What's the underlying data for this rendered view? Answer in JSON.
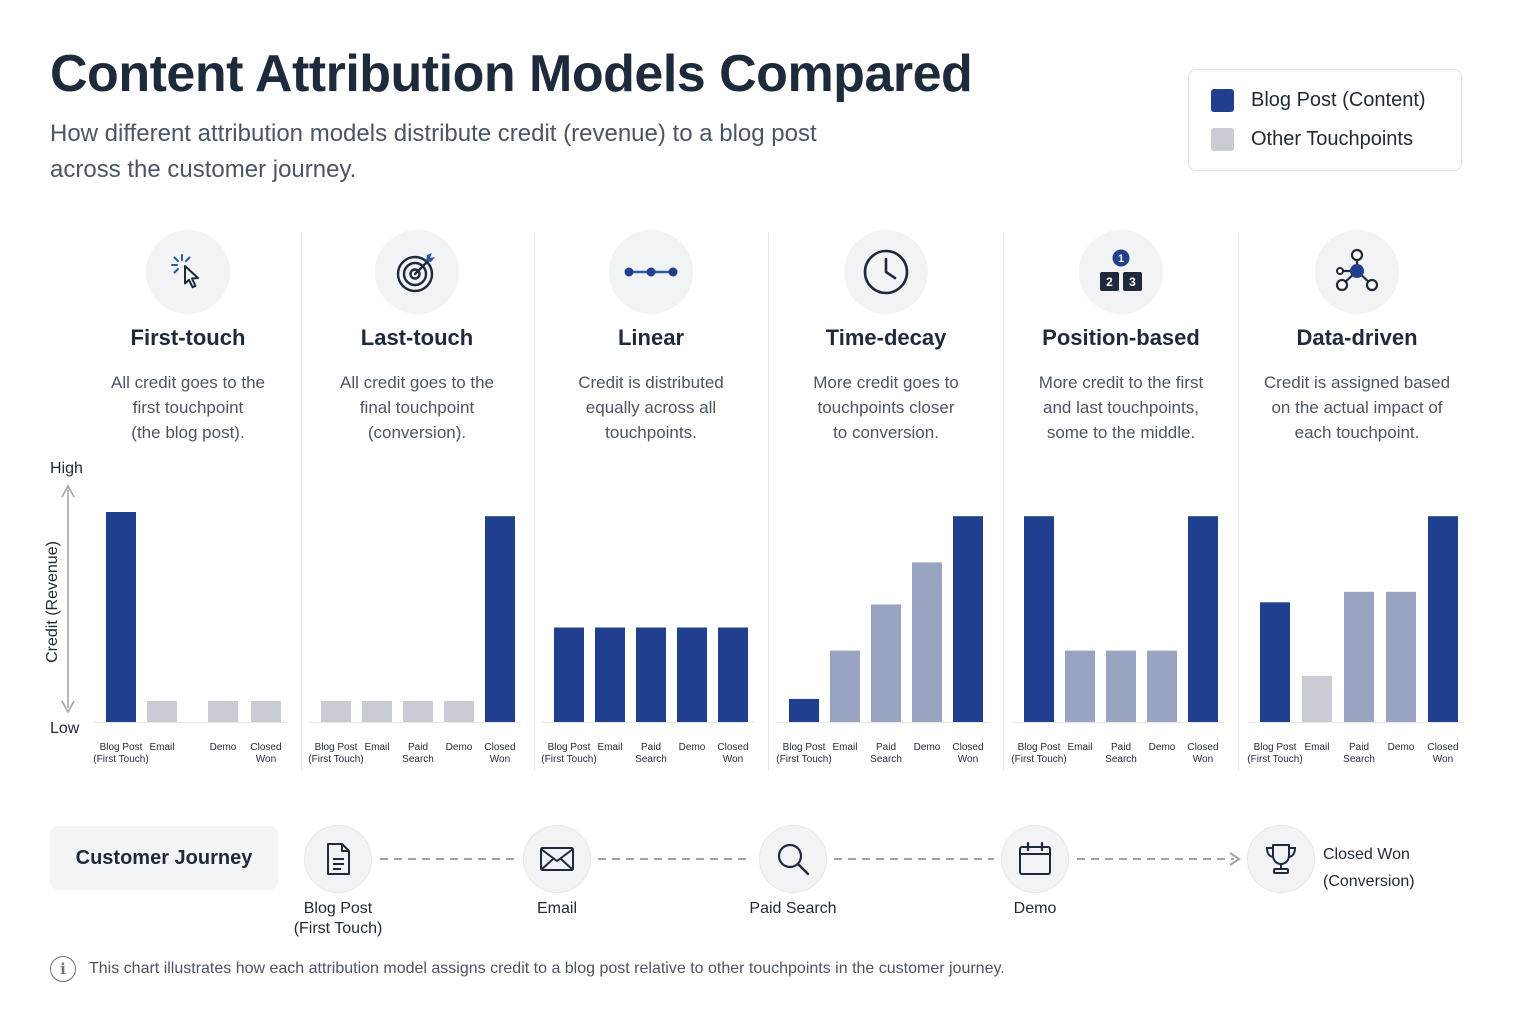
{
  "header": {
    "title": "Content Attribution Models Compared",
    "subtitle": "How different attribution models distribute credit (revenue) to a blog post across the customer journey."
  },
  "legend": {
    "items": [
      {
        "label": "Blog Post (Content)",
        "color": "#213f8f"
      },
      {
        "label": "Other Touchpoints",
        "color": "#c9ccd2"
      }
    ]
  },
  "axis": {
    "ylabel": "Credit (Revenue)",
    "high_label": "High",
    "low_label": "Low"
  },
  "models": [
    {
      "title": "First-touch",
      "icon": "cursor-click-icon",
      "description": "All credit goes to the\nfirst touchpoint\n(the blog post)."
    },
    {
      "title": "Last-touch",
      "icon": "target-icon",
      "description": "All credit goes to the\nfinal touchpoint\n(conversion)."
    },
    {
      "title": "Linear",
      "icon": "connected-dots-icon",
      "description": "Credit is distributed\nequally across all\ntouchpoints."
    },
    {
      "title": "Time-decay",
      "icon": "clock-icon",
      "description": "More credit goes to\ntouchpoints closer\nto conversion."
    },
    {
      "title": "Position-based",
      "icon": "podium-icon",
      "description": "More credit to the first\nand last touchpoints,\nsome to the middle."
    },
    {
      "title": "Data-driven",
      "icon": "network-icon",
      "description": "Credit is assigned based\non the actual impact of\neach touchpoint."
    }
  ],
  "podium_numbers": [
    "1",
    "2",
    "3"
  ],
  "chart_data": [
    {
      "type": "bar",
      "title": "First-touch",
      "categories": [
        "Blog Post\n(First Touch)",
        "Email",
        "",
        "Demo",
        "Closed\nWon"
      ],
      "values": [
        100,
        10,
        0,
        10,
        10
      ],
      "colors": [
        "#213f8f",
        "#c9ccd2",
        "#c9ccd2",
        "#c9ccd2",
        "#c9ccd2"
      ],
      "ylabel": "Credit (Revenue)",
      "ylim": [
        0,
        100
      ],
      "grid": false
    },
    {
      "type": "bar",
      "title": "Last-touch",
      "categories": [
        "Blog Post\n(First Touch)",
        "Email",
        "Paid\nSearch",
        "Demo",
        "Closed\nWon"
      ],
      "values": [
        10,
        10,
        10,
        10,
        98
      ],
      "colors": [
        "#c9ccd2",
        "#c9ccd2",
        "#c9ccd2",
        "#c9ccd2",
        "#213f8f"
      ],
      "ylim": [
        0,
        100
      ],
      "grid": false
    },
    {
      "type": "bar",
      "title": "Linear",
      "categories": [
        "Blog Post\n(First Touch)",
        "Email",
        "Paid\nSearch",
        "Demo",
        "Closed\nWon"
      ],
      "values": [
        45,
        45,
        45,
        45,
        45
      ],
      "colors": [
        "#213f8f",
        "#213f8f",
        "#213f8f",
        "#213f8f",
        "#213f8f"
      ],
      "ylim": [
        0,
        100
      ],
      "grid": false
    },
    {
      "type": "bar",
      "title": "Time-decay",
      "categories": [
        "Blog Post\n(First Touch)",
        "Email",
        "Paid\nSearch",
        "Demo",
        "Closed\nWon"
      ],
      "values": [
        11,
        34,
        56,
        76,
        98
      ],
      "colors": [
        "#213f8f",
        "#99a5c0",
        "#99a5c0",
        "#99a5c0",
        "#213f8f"
      ],
      "ylim": [
        0,
        100
      ],
      "grid": false
    },
    {
      "type": "bar",
      "title": "Position-based",
      "categories": [
        "Blog Post\n(First Touch)",
        "Email",
        "Paid\nSearch",
        "Demo",
        "Closed\nWon"
      ],
      "values": [
        98,
        34,
        34,
        34,
        98
      ],
      "colors": [
        "#213f8f",
        "#99a5c0",
        "#99a5c0",
        "#99a5c0",
        "#213f8f"
      ],
      "ylim": [
        0,
        100
      ],
      "grid": false
    },
    {
      "type": "bar",
      "title": "Data-driven",
      "categories": [
        "Blog Post\n(First Touch)",
        "Email",
        "Paid\nSearch",
        "Demo",
        "Closed\nWon"
      ],
      "values": [
        57,
        22,
        62,
        62,
        98
      ],
      "colors": [
        "#213f8f",
        "#c9ccd2",
        "#99a5c0",
        "#99a5c0",
        "#213f8f"
      ],
      "ylim": [
        0,
        100
      ],
      "grid": false
    }
  ],
  "journey": {
    "title": "Customer Journey",
    "steps": [
      {
        "label": "Blog Post\n(First Touch)",
        "icon": "document-icon"
      },
      {
        "label": "Email",
        "icon": "envelope-icon"
      },
      {
        "label": "Paid Search",
        "icon": "magnifier-icon"
      },
      {
        "label": "Demo",
        "icon": "calendar-icon"
      },
      {
        "label": "Closed Won\n(Conversion)",
        "icon": "trophy-icon"
      }
    ]
  },
  "footnote": "This chart illustrates how each attribution model assigns credit to a blog post relative to other touchpoints in the customer journey."
}
